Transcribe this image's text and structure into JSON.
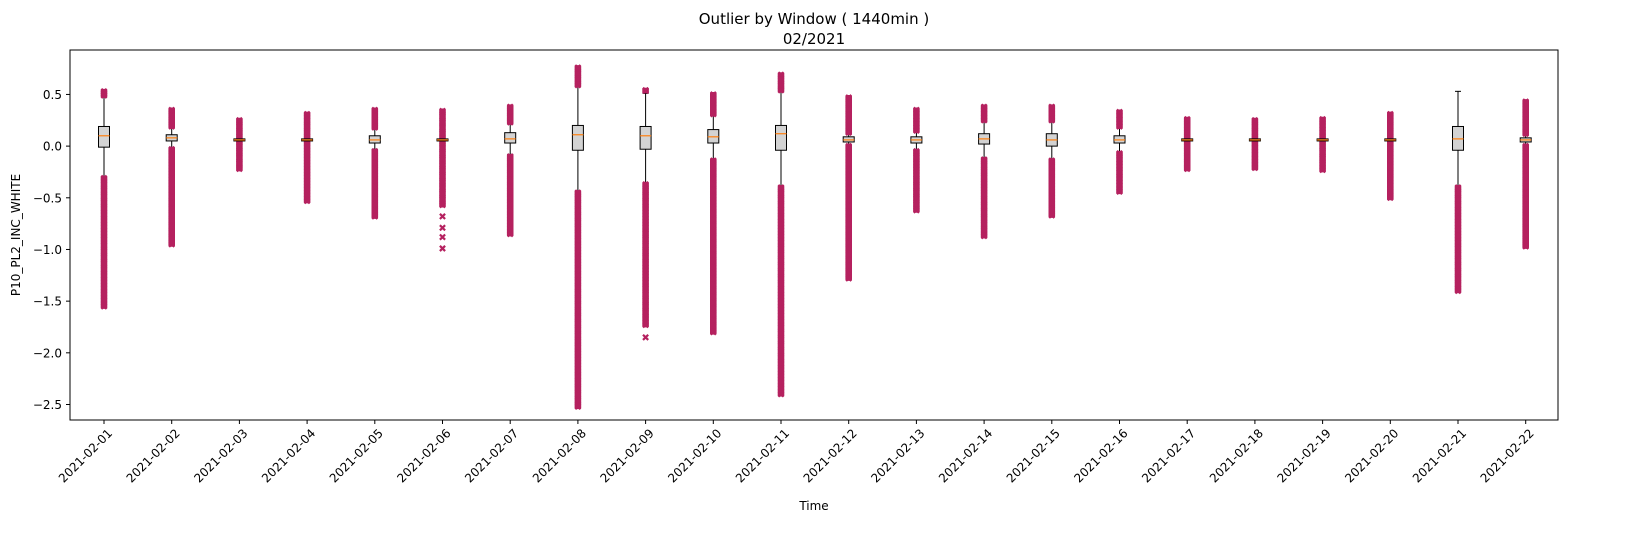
{
  "chart_data": {
    "type": "box",
    "title_line1": "Outlier by Window ( 1440min )",
    "title_line2": "02/2021",
    "xlabel": "Time",
    "ylabel": "P10_PL2_INC_WHITE",
    "ylim": [
      -2.65,
      0.93
    ],
    "yticks": [
      0.5,
      0.0,
      -0.5,
      -1.0,
      -1.5,
      -2.0,
      -2.5
    ],
    "ytick_labels": [
      "0.5",
      "0.0",
      "−0.5",
      "−1.0",
      "−1.5",
      "−2.0",
      "−2.5"
    ],
    "categories": [
      "2021-02-01",
      "2021-02-02",
      "2021-02-03",
      "2021-02-04",
      "2021-02-05",
      "2021-02-06",
      "2021-02-07",
      "2021-02-08",
      "2021-02-09",
      "2021-02-10",
      "2021-02-11",
      "2021-02-12",
      "2021-02-13",
      "2021-02-14",
      "2021-02-15",
      "2021-02-16",
      "2021-02-17",
      "2021-02-18",
      "2021-02-19",
      "2021-02-20",
      "2021-02-21",
      "2021-02-22"
    ],
    "boxes": [
      {
        "q1": -0.01,
        "median": 0.1,
        "q3": 0.19,
        "wlo": -0.3,
        "whi": 0.49,
        "out_lo": [
          -1.55,
          -0.31
        ],
        "out_hi": [
          0.49,
          0.53
        ],
        "iso_lo": []
      },
      {
        "q1": 0.05,
        "median": 0.08,
        "q3": 0.11,
        "wlo": -0.03,
        "whi": 0.2,
        "out_lo": [
          -0.95,
          -0.03
        ],
        "out_hi": [
          0.19,
          0.35
        ],
        "iso_lo": []
      },
      {
        "q1": 0.05,
        "median": 0.06,
        "q3": 0.07,
        "wlo": 0.05,
        "whi": 0.07,
        "out_lo": [
          -0.22,
          0.05
        ],
        "out_hi": [
          0.07,
          0.25
        ],
        "iso_lo": []
      },
      {
        "q1": 0.05,
        "median": 0.06,
        "q3": 0.07,
        "wlo": 0.05,
        "whi": 0.07,
        "out_lo": [
          -0.53,
          0.05
        ],
        "out_hi": [
          0.07,
          0.31
        ],
        "iso_lo": []
      },
      {
        "q1": 0.03,
        "median": 0.06,
        "q3": 0.1,
        "wlo": -0.03,
        "whi": 0.18,
        "out_lo": [
          -0.68,
          -0.05
        ],
        "out_hi": [
          0.18,
          0.35
        ],
        "iso_lo": []
      },
      {
        "q1": 0.05,
        "median": 0.06,
        "q3": 0.07,
        "wlo": 0.04,
        "whi": 0.07,
        "out_lo": [
          -0.57,
          0.04
        ],
        "out_hi": [
          0.07,
          0.34
        ],
        "iso_lo": [
          -0.68,
          -0.79,
          -0.88,
          -0.99
        ]
      },
      {
        "q1": 0.03,
        "median": 0.07,
        "q3": 0.13,
        "wlo": -0.08,
        "whi": 0.23,
        "out_lo": [
          -0.85,
          -0.1
        ],
        "out_hi": [
          0.23,
          0.38
        ],
        "iso_lo": []
      },
      {
        "q1": -0.04,
        "median": 0.11,
        "q3": 0.2,
        "wlo": -0.44,
        "whi": 0.58,
        "out_lo": [
          -2.52,
          -0.45
        ],
        "out_hi": [
          0.59,
          0.76
        ],
        "iso_lo": []
      },
      {
        "q1": -0.03,
        "median": 0.1,
        "q3": 0.19,
        "wlo": -0.36,
        "whi": 0.51,
        "out_lo": [
          -1.73,
          -0.37
        ],
        "out_hi": [
          0.54,
          0.54
        ],
        "iso_lo": [
          -1.85
        ]
      },
      {
        "q1": 0.03,
        "median": 0.09,
        "q3": 0.16,
        "wlo": -0.13,
        "whi": 0.31,
        "out_lo": [
          -1.8,
          -0.14
        ],
        "out_hi": [
          0.31,
          0.5
        ],
        "iso_lo": []
      },
      {
        "q1": -0.04,
        "median": 0.12,
        "q3": 0.2,
        "wlo": -0.39,
        "whi": 0.54,
        "out_lo": [
          -2.4,
          -0.4
        ],
        "out_hi": [
          0.54,
          0.69
        ],
        "iso_lo": []
      },
      {
        "q1": 0.04,
        "median": 0.06,
        "q3": 0.09,
        "wlo": 0.0,
        "whi": 0.13,
        "out_lo": [
          -1.28,
          0.0
        ],
        "out_hi": [
          0.13,
          0.47
        ],
        "iso_lo": []
      },
      {
        "q1": 0.03,
        "median": 0.06,
        "q3": 0.09,
        "wlo": -0.04,
        "whi": 0.15,
        "out_lo": [
          -0.62,
          -0.05
        ],
        "out_hi": [
          0.15,
          0.35
        ],
        "iso_lo": []
      },
      {
        "q1": 0.02,
        "median": 0.07,
        "q3": 0.12,
        "wlo": -0.12,
        "whi": 0.24,
        "out_lo": [
          -0.87,
          -0.13
        ],
        "out_hi": [
          0.25,
          0.38
        ],
        "iso_lo": []
      },
      {
        "q1": 0.0,
        "median": 0.06,
        "q3": 0.12,
        "wlo": -0.13,
        "whi": 0.25,
        "out_lo": [
          -0.67,
          -0.14
        ],
        "out_hi": [
          0.25,
          0.38
        ],
        "iso_lo": []
      },
      {
        "q1": 0.03,
        "median": 0.06,
        "q3": 0.1,
        "wlo": -0.06,
        "whi": 0.18,
        "out_lo": [
          -0.44,
          -0.07
        ],
        "out_hi": [
          0.19,
          0.33
        ],
        "iso_lo": []
      },
      {
        "q1": 0.05,
        "median": 0.06,
        "q3": 0.07,
        "wlo": 0.05,
        "whi": 0.07,
        "out_lo": [
          -0.22,
          0.05
        ],
        "out_hi": [
          0.07,
          0.26
        ],
        "iso_lo": []
      },
      {
        "q1": 0.05,
        "median": 0.06,
        "q3": 0.07,
        "wlo": 0.05,
        "whi": 0.07,
        "out_lo": [
          -0.21,
          0.05
        ],
        "out_hi": [
          0.07,
          0.25
        ],
        "iso_lo": []
      },
      {
        "q1": 0.05,
        "median": 0.06,
        "q3": 0.07,
        "wlo": 0.05,
        "whi": 0.07,
        "out_lo": [
          -0.23,
          0.05
        ],
        "out_hi": [
          0.07,
          0.26
        ],
        "iso_lo": []
      },
      {
        "q1": 0.05,
        "median": 0.06,
        "q3": 0.07,
        "wlo": 0.05,
        "whi": 0.07,
        "out_lo": [
          -0.5,
          0.05
        ],
        "out_hi": [
          0.07,
          0.31
        ],
        "iso_lo": []
      },
      {
        "q1": -0.04,
        "median": 0.07,
        "q3": 0.19,
        "wlo": -0.39,
        "whi": 0.53,
        "out_lo": [
          -1.4,
          -0.4
        ],
        "out_hi": [],
        "iso_lo": []
      },
      {
        "q1": 0.04,
        "median": 0.06,
        "q3": 0.08,
        "wlo": 0.0,
        "whi": 0.12,
        "out_lo": [
          -0.97,
          0.0
        ],
        "out_hi": [
          0.12,
          0.43
        ],
        "iso_lo": []
      }
    ],
    "colors": {
      "outlier": "#b5215f",
      "box_fill": "#d3d3d3",
      "box_edge": "#000000",
      "median": "#ff7f0e"
    }
  }
}
